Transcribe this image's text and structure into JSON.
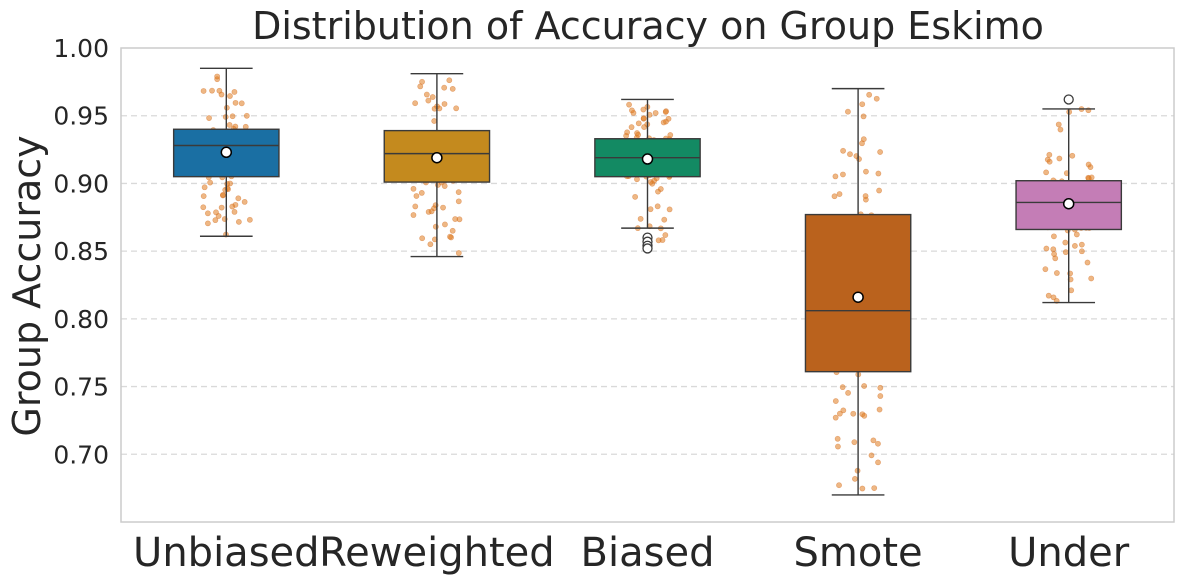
{
  "chart_data": {
    "type": "box",
    "title": "Distribution of Accuracy on Group Eskimo",
    "xlabel": "",
    "ylabel": "Group Accuracy",
    "ylim": [
      0.65,
      1.0
    ],
    "yticks": [
      "0.70",
      "0.75",
      "0.80",
      "0.85",
      "0.90",
      "0.95",
      "1.00"
    ],
    "ytick_values": [
      0.7,
      0.75,
      0.8,
      0.85,
      0.9,
      0.95,
      1.0
    ],
    "grid": true,
    "categories": [
      "Unbiased",
      "Reweighted",
      "Biased",
      "Smote",
      "Under"
    ],
    "series": [
      {
        "name": "Unbiased",
        "color": "#1a6fa3",
        "q1": 0.905,
        "median": 0.928,
        "q3": 0.94,
        "whisker_low": 0.861,
        "whisker_high": 0.985,
        "mean": 0.923,
        "outliers": [],
        "points_min": 0.862,
        "points_max": 0.985
      },
      {
        "name": "Reweighted",
        "color": "#c48a1e",
        "q1": 0.901,
        "median": 0.922,
        "q3": 0.939,
        "whisker_low": 0.846,
        "whisker_high": 0.981,
        "mean": 0.919,
        "outliers": [],
        "points_min": 0.846,
        "points_max": 0.98
      },
      {
        "name": "Biased",
        "color": "#138a63",
        "q1": 0.905,
        "median": 0.919,
        "q3": 0.933,
        "whisker_low": 0.867,
        "whisker_high": 0.962,
        "mean": 0.918,
        "outliers": [
          0.86,
          0.857,
          0.854,
          0.852
        ],
        "points_min": 0.851,
        "points_max": 0.962
      },
      {
        "name": "Smote",
        "color": "#ba621d",
        "q1": 0.761,
        "median": 0.806,
        "q3": 0.877,
        "whisker_low": 0.67,
        "whisker_high": 0.97,
        "mean": 0.816,
        "outliers": [],
        "points_min": 0.67,
        "points_max": 0.97
      },
      {
        "name": "Under",
        "color": "#c47db6",
        "q1": 0.866,
        "median": 0.886,
        "q3": 0.902,
        "whisker_low": 0.812,
        "whisker_high": 0.955,
        "mean": 0.885,
        "outliers": [
          0.962
        ],
        "points_min": 0.812,
        "points_max": 0.962
      }
    ]
  }
}
